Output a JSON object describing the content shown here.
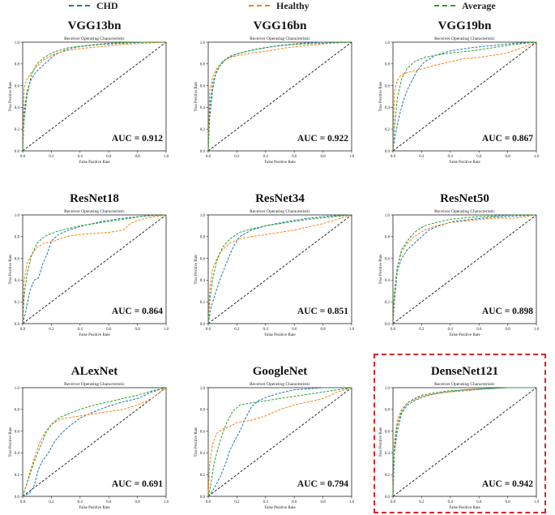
{
  "legend": [
    {
      "label": "CHD",
      "color": "#1f77b4"
    },
    {
      "label": "Healthy",
      "color": "#ff7f0e"
    },
    {
      "label": "Average",
      "color": "#2ca02c"
    }
  ],
  "common": {
    "plot_title": "Receiver Operating Characteristic",
    "xlabel": "False Positive Rate",
    "ylabel": "True Positive Rate",
    "ticks": [
      "0.0",
      "0.2",
      "0.4",
      "0.6",
      "0.8",
      "1.0"
    ]
  },
  "highlight_color": "#d62828",
  "chart_data": [
    {
      "type": "line",
      "model": "VGG13bn",
      "auc_text": "AUC = 0.912",
      "xlim": [
        0,
        1
      ],
      "ylim": [
        0,
        1
      ],
      "series": [
        {
          "name": "CHD",
          "x": [
            0,
            0.01,
            0.03,
            0.06,
            0.09,
            0.12,
            0.17,
            0.22,
            0.3,
            0.4,
            0.55,
            0.7,
            0.85,
            1
          ],
          "y": [
            0,
            0.35,
            0.55,
            0.66,
            0.72,
            0.76,
            0.82,
            0.88,
            0.93,
            0.96,
            0.98,
            0.99,
            1,
            1
          ]
        },
        {
          "name": "Healthy",
          "x": [
            0,
            0.01,
            0.03,
            0.06,
            0.1,
            0.15,
            0.22,
            0.3,
            0.4,
            0.55,
            0.7,
            0.85,
            1
          ],
          "y": [
            0,
            0.58,
            0.66,
            0.72,
            0.78,
            0.84,
            0.89,
            0.92,
            0.94,
            0.96,
            0.98,
            0.99,
            1
          ]
        },
        {
          "name": "Average",
          "x": [
            0,
            0.01,
            0.03,
            0.06,
            0.1,
            0.15,
            0.22,
            0.32,
            0.45,
            0.6,
            0.8,
            1
          ],
          "y": [
            0,
            0.28,
            0.5,
            0.7,
            0.8,
            0.86,
            0.91,
            0.95,
            0.97,
            0.99,
            1,
            1
          ]
        }
      ]
    },
    {
      "type": "line",
      "model": "VGG16bn",
      "auc_text": "AUC = 0.922",
      "xlim": [
        0,
        1
      ],
      "ylim": [
        0,
        1
      ],
      "series": [
        {
          "name": "CHD",
          "x": [
            0,
            0.01,
            0.03,
            0.05,
            0.08,
            0.12,
            0.18,
            0.25,
            0.35,
            0.5,
            0.65,
            0.8,
            1
          ],
          "y": [
            0,
            0.3,
            0.55,
            0.7,
            0.78,
            0.84,
            0.88,
            0.91,
            0.94,
            0.97,
            0.99,
            1,
            1
          ]
        },
        {
          "name": "Healthy",
          "x": [
            0,
            0.01,
            0.03,
            0.06,
            0.1,
            0.15,
            0.22,
            0.3,
            0.42,
            0.55,
            0.7,
            0.85,
            1
          ],
          "y": [
            0,
            0.55,
            0.68,
            0.76,
            0.82,
            0.86,
            0.88,
            0.9,
            0.92,
            0.95,
            0.97,
            0.99,
            1
          ]
        },
        {
          "name": "Average",
          "x": [
            0,
            0.01,
            0.03,
            0.06,
            0.1,
            0.15,
            0.22,
            0.32,
            0.45,
            0.6,
            0.8,
            1
          ],
          "y": [
            0,
            0.4,
            0.62,
            0.74,
            0.82,
            0.87,
            0.9,
            0.93,
            0.96,
            0.98,
            0.99,
            1
          ]
        }
      ]
    },
    {
      "type": "line",
      "model": "VGG19bn",
      "auc_text": "AUC = 0.867",
      "xlim": [
        0,
        1
      ],
      "ylim": [
        0,
        1
      ],
      "series": [
        {
          "name": "CHD",
          "x": [
            0,
            0.01,
            0.04,
            0.07,
            0.1,
            0.13,
            0.17,
            0.22,
            0.3,
            0.4,
            0.55,
            0.7,
            0.85,
            1
          ],
          "y": [
            0,
            0.1,
            0.3,
            0.45,
            0.56,
            0.64,
            0.74,
            0.82,
            0.88,
            0.92,
            0.95,
            0.97,
            0.99,
            1
          ]
        },
        {
          "name": "Healthy",
          "x": [
            0,
            0.01,
            0.03,
            0.06,
            0.1,
            0.16,
            0.22,
            0.3,
            0.4,
            0.5,
            0.6,
            0.7,
            0.8,
            0.9,
            1
          ],
          "y": [
            0,
            0.55,
            0.65,
            0.7,
            0.72,
            0.74,
            0.76,
            0.79,
            0.82,
            0.85,
            0.86,
            0.88,
            0.9,
            0.95,
            1
          ]
        },
        {
          "name": "Average",
          "x": [
            0,
            0.01,
            0.03,
            0.06,
            0.1,
            0.15,
            0.22,
            0.3,
            0.4,
            0.55,
            0.7,
            0.85,
            1
          ],
          "y": [
            0,
            0.2,
            0.48,
            0.66,
            0.76,
            0.82,
            0.86,
            0.88,
            0.9,
            0.92,
            0.95,
            0.98,
            1
          ]
        }
      ]
    },
    {
      "type": "line",
      "model": "ResNet18",
      "auc_text": "AUC = 0.864",
      "xlim": [
        0,
        1
      ],
      "ylim": [
        0,
        1
      ],
      "series": [
        {
          "name": "CHD",
          "x": [
            0,
            0.02,
            0.05,
            0.08,
            0.11,
            0.14,
            0.17,
            0.2,
            0.25,
            0.32,
            0.42,
            0.55,
            0.7,
            0.85,
            1
          ],
          "y": [
            0,
            0.1,
            0.3,
            0.4,
            0.42,
            0.55,
            0.64,
            0.76,
            0.82,
            0.86,
            0.9,
            0.94,
            0.97,
            0.99,
            1
          ]
        },
        {
          "name": "Healthy",
          "x": [
            0,
            0.01,
            0.03,
            0.06,
            0.1,
            0.15,
            0.22,
            0.3,
            0.4,
            0.5,
            0.6,
            0.7,
            0.75,
            0.8,
            0.9,
            1
          ],
          "y": [
            0,
            0.4,
            0.55,
            0.63,
            0.7,
            0.74,
            0.76,
            0.8,
            0.82,
            0.83,
            0.84,
            0.86,
            0.92,
            0.95,
            0.98,
            1
          ]
        },
        {
          "name": "Average",
          "x": [
            0,
            0.01,
            0.03,
            0.06,
            0.1,
            0.15,
            0.22,
            0.3,
            0.4,
            0.55,
            0.7,
            0.85,
            1
          ],
          "y": [
            0,
            0.25,
            0.45,
            0.62,
            0.74,
            0.8,
            0.84,
            0.87,
            0.9,
            0.93,
            0.96,
            0.99,
            1
          ]
        }
      ]
    },
    {
      "type": "line",
      "model": "ResNet34",
      "auc_text": "AUC = 0.851",
      "xlim": [
        0,
        1
      ],
      "ylim": [
        0,
        1
      ],
      "series": [
        {
          "name": "CHD",
          "x": [
            0,
            0.02,
            0.05,
            0.08,
            0.11,
            0.14,
            0.18,
            0.22,
            0.3,
            0.4,
            0.55,
            0.7,
            0.85,
            1
          ],
          "y": [
            0,
            0.15,
            0.28,
            0.4,
            0.5,
            0.6,
            0.72,
            0.8,
            0.86,
            0.9,
            0.94,
            0.97,
            0.99,
            1
          ]
        },
        {
          "name": "Healthy",
          "x": [
            0,
            0.01,
            0.03,
            0.06,
            0.1,
            0.15,
            0.22,
            0.3,
            0.4,
            0.5,
            0.6,
            0.7,
            0.8,
            0.9,
            1
          ],
          "y": [
            0,
            0.3,
            0.5,
            0.6,
            0.68,
            0.74,
            0.78,
            0.8,
            0.82,
            0.84,
            0.86,
            0.89,
            0.92,
            0.96,
            1
          ]
        },
        {
          "name": "Average",
          "x": [
            0,
            0.01,
            0.03,
            0.06,
            0.1,
            0.15,
            0.22,
            0.3,
            0.4,
            0.55,
            0.7,
            0.85,
            1
          ],
          "y": [
            0,
            0.2,
            0.4,
            0.58,
            0.7,
            0.78,
            0.84,
            0.87,
            0.9,
            0.93,
            0.96,
            0.98,
            1
          ]
        }
      ]
    },
    {
      "type": "line",
      "model": "ResNet50",
      "auc_text": "AUC = 0.898",
      "xlim": [
        0,
        1
      ],
      "ylim": [
        0,
        1
      ],
      "series": [
        {
          "name": "CHD",
          "x": [
            0,
            0.01,
            0.03,
            0.06,
            0.1,
            0.15,
            0.2,
            0.25,
            0.32,
            0.42,
            0.55,
            0.7,
            0.85,
            1
          ],
          "y": [
            0,
            0.2,
            0.48,
            0.6,
            0.68,
            0.74,
            0.8,
            0.86,
            0.9,
            0.94,
            0.96,
            0.98,
            0.99,
            1
          ]
        },
        {
          "name": "Healthy",
          "x": [
            0,
            0.01,
            0.03,
            0.06,
            0.1,
            0.15,
            0.22,
            0.3,
            0.4,
            0.55,
            0.7,
            0.85,
            1
          ],
          "y": [
            0,
            0.25,
            0.52,
            0.66,
            0.74,
            0.8,
            0.86,
            0.9,
            0.93,
            0.95,
            0.97,
            0.97,
            1
          ]
        },
        {
          "name": "Average",
          "x": [
            0,
            0.01,
            0.03,
            0.06,
            0.1,
            0.15,
            0.22,
            0.3,
            0.4,
            0.55,
            0.7,
            0.85,
            1
          ],
          "y": [
            0,
            0.28,
            0.52,
            0.68,
            0.76,
            0.84,
            0.9,
            0.93,
            0.96,
            0.98,
            0.99,
            1,
            1
          ]
        }
      ]
    },
    {
      "type": "line",
      "model": "ALexNet",
      "auc_text": "AUC = 0.691",
      "xlim": [
        0,
        1
      ],
      "ylim": [
        0,
        1
      ],
      "series": [
        {
          "name": "CHD",
          "x": [
            0,
            0.05,
            0.08,
            0.11,
            0.14,
            0.18,
            0.22,
            0.27,
            0.33,
            0.4,
            0.5,
            0.6,
            0.7,
            0.8,
            0.9,
            1
          ],
          "y": [
            0,
            0.03,
            0.1,
            0.25,
            0.33,
            0.4,
            0.5,
            0.58,
            0.65,
            0.72,
            0.78,
            0.83,
            0.87,
            0.9,
            0.96,
            1
          ]
        },
        {
          "name": "Healthy",
          "x": [
            0,
            0.02,
            0.05,
            0.08,
            0.12,
            0.16,
            0.2,
            0.25,
            0.3,
            0.4,
            0.5,
            0.6,
            0.7,
            0.8,
            0.9,
            1
          ],
          "y": [
            0,
            0.08,
            0.22,
            0.35,
            0.5,
            0.6,
            0.66,
            0.7,
            0.72,
            0.74,
            0.76,
            0.78,
            0.8,
            0.84,
            0.9,
            1
          ]
        },
        {
          "name": "Average",
          "x": [
            0,
            0.02,
            0.05,
            0.08,
            0.12,
            0.16,
            0.2,
            0.25,
            0.3,
            0.4,
            0.5,
            0.6,
            0.7,
            0.8,
            0.9,
            1
          ],
          "y": [
            0,
            0.08,
            0.2,
            0.32,
            0.45,
            0.58,
            0.66,
            0.72,
            0.75,
            0.8,
            0.84,
            0.87,
            0.9,
            0.93,
            0.97,
            1
          ]
        }
      ]
    },
    {
      "type": "line",
      "model": "GoogleNet",
      "auc_text": "AUC = 0.794",
      "xlim": [
        0,
        1
      ],
      "ylim": [
        0,
        1
      ],
      "series": [
        {
          "name": "CHD",
          "x": [
            0,
            0.03,
            0.06,
            0.09,
            0.12,
            0.15,
            0.18,
            0.22,
            0.26,
            0.3,
            0.35,
            0.42,
            0.5,
            0.6,
            0.7,
            0.8,
            1
          ],
          "y": [
            0,
            0.05,
            0.12,
            0.2,
            0.3,
            0.42,
            0.5,
            0.6,
            0.72,
            0.82,
            0.88,
            0.92,
            0.95,
            0.98,
            0.99,
            1,
            1
          ]
        },
        {
          "name": "Healthy",
          "x": [
            0,
            0.01,
            0.03,
            0.06,
            0.1,
            0.15,
            0.2,
            0.3,
            0.4,
            0.5,
            0.6,
            0.7,
            0.8,
            0.9,
            1
          ],
          "y": [
            0,
            0.3,
            0.48,
            0.58,
            0.62,
            0.64,
            0.68,
            0.7,
            0.74,
            0.8,
            0.84,
            0.87,
            0.9,
            0.96,
            1
          ]
        },
        {
          "name": "Average",
          "x": [
            0,
            0.02,
            0.04,
            0.07,
            0.1,
            0.13,
            0.17,
            0.22,
            0.3,
            0.4,
            0.55,
            0.7,
            0.85,
            1
          ],
          "y": [
            0,
            0.12,
            0.3,
            0.45,
            0.58,
            0.68,
            0.78,
            0.84,
            0.86,
            0.88,
            0.91,
            0.94,
            0.97,
            1
          ]
        }
      ]
    },
    {
      "type": "line",
      "model": "DenseNet121",
      "auc_text": "AUC = 0.942",
      "highlighted": true,
      "xlim": [
        0,
        1
      ],
      "ylim": [
        0,
        1
      ],
      "series": [
        {
          "name": "CHD",
          "x": [
            0,
            0.01,
            0.03,
            0.06,
            0.1,
            0.15,
            0.2,
            0.28,
            0.38,
            0.5,
            0.65,
            0.8,
            1
          ],
          "y": [
            0,
            0.4,
            0.6,
            0.76,
            0.84,
            0.88,
            0.91,
            0.94,
            0.96,
            0.98,
            0.99,
            1,
            1
          ]
        },
        {
          "name": "Healthy",
          "x": [
            0,
            0.01,
            0.03,
            0.06,
            0.1,
            0.15,
            0.2,
            0.28,
            0.38,
            0.5,
            0.65,
            0.8,
            1
          ],
          "y": [
            0,
            0.5,
            0.7,
            0.8,
            0.86,
            0.89,
            0.92,
            0.94,
            0.96,
            0.97,
            0.99,
            1,
            1
          ]
        },
        {
          "name": "Average",
          "x": [
            0,
            0.01,
            0.03,
            0.06,
            0.1,
            0.15,
            0.2,
            0.28,
            0.38,
            0.5,
            0.65,
            0.8,
            1
          ],
          "y": [
            0,
            0.45,
            0.66,
            0.78,
            0.86,
            0.9,
            0.93,
            0.95,
            0.97,
            0.98,
            0.99,
            1,
            1
          ]
        }
      ]
    }
  ]
}
